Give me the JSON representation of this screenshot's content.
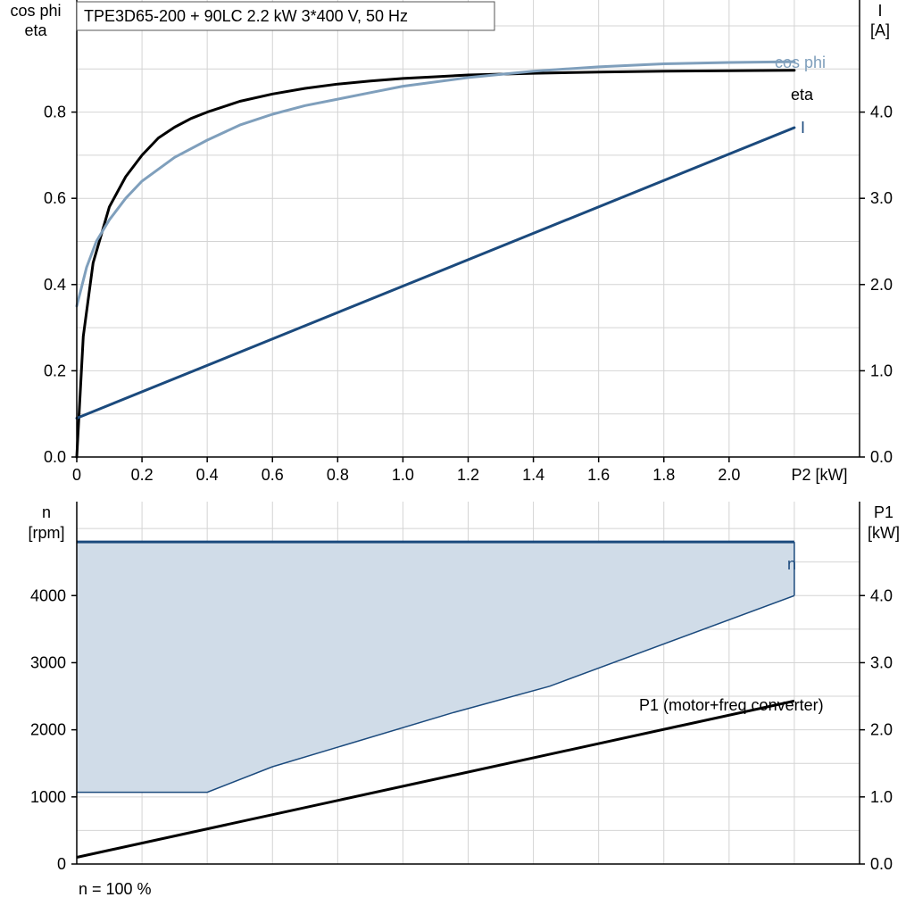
{
  "colors": {
    "eta": "#000000",
    "cos_phi": "#7f9fbc",
    "current": "#1b4a7d",
    "speed": "#1b4a7d",
    "speed_fill": "#d0dce8",
    "p1": "#000000",
    "grid": "#d4d4d4"
  },
  "footer": {
    "note": "n = 100 %"
  },
  "chart_data": [
    {
      "type": "line",
      "title": "TPE3D65-200 + 90LC   2.2 kW   3*400 V, 50 Hz",
      "xlabel": "P2 [kW]",
      "ylabel_lines": [
        "cos phi",
        "eta"
      ],
      "y2label_lines": [
        "I",
        "[A]"
      ],
      "xlim": [
        0,
        2.4
      ],
      "ylim": [
        0,
        1.06
      ],
      "y2lim": [
        0,
        5.3
      ],
      "x_ticks": [
        0,
        0.2,
        0.4,
        0.6,
        0.8,
        1.0,
        1.2,
        1.4,
        1.6,
        1.8,
        2.0
      ],
      "x_tick_labels": [
        "0",
        "0.2",
        "0.4",
        "0.6",
        "0.8",
        "1.0",
        "1.2",
        "1.4",
        "1.6",
        "1.8",
        "2.0"
      ],
      "y_ticks": [
        0,
        0.2,
        0.4,
        0.6,
        0.8
      ],
      "y_tick_labels": [
        "0.0",
        "0.2",
        "0.4",
        "0.6",
        "0.8"
      ],
      "y2_ticks": [
        0,
        1,
        2,
        3,
        4
      ],
      "y2_tick_labels": [
        "0.0",
        "1.0",
        "2.0",
        "3.0",
        "4.0"
      ],
      "grid": true,
      "series": [
        {
          "name": "eta",
          "axis": "left",
          "color_key": "eta",
          "x": [
            0,
            0.02,
            0.05,
            0.1,
            0.15,
            0.2,
            0.25,
            0.3,
            0.35,
            0.4,
            0.5,
            0.6,
            0.7,
            0.8,
            0.9,
            1.0,
            1.1,
            1.2,
            1.4,
            1.6,
            1.8,
            2.0,
            2.2
          ],
          "y": [
            0.0,
            0.28,
            0.45,
            0.58,
            0.65,
            0.7,
            0.74,
            0.765,
            0.785,
            0.8,
            0.825,
            0.842,
            0.855,
            0.865,
            0.872,
            0.878,
            0.882,
            0.886,
            0.89,
            0.893,
            0.895,
            0.896,
            0.897
          ]
        },
        {
          "name": "cos phi",
          "axis": "left",
          "color_key": "cos_phi",
          "x": [
            0,
            0.03,
            0.06,
            0.1,
            0.15,
            0.2,
            0.3,
            0.4,
            0.5,
            0.6,
            0.7,
            0.8,
            0.9,
            1.0,
            1.2,
            1.4,
            1.6,
            1.8,
            2.0,
            2.2
          ],
          "y": [
            0.35,
            0.44,
            0.5,
            0.55,
            0.6,
            0.64,
            0.695,
            0.735,
            0.77,
            0.795,
            0.815,
            0.83,
            0.845,
            0.86,
            0.88,
            0.895,
            0.905,
            0.912,
            0.915,
            0.917
          ]
        },
        {
          "name": "I",
          "axis": "right",
          "color_key": "current",
          "x": [
            0,
            2.2
          ],
          "y": [
            0.45,
            3.82
          ]
        }
      ]
    },
    {
      "type": "area",
      "ylabel_lines": [
        "n",
        "[rpm]"
      ],
      "y2label_lines": [
        "P1",
        "[kW]"
      ],
      "xlim": [
        0,
        2.4
      ],
      "ylim": [
        0,
        5400
      ],
      "y2lim": [
        0,
        5.4
      ],
      "y_ticks": [
        0,
        1000,
        2000,
        3000,
        4000
      ],
      "y_tick_labels": [
        "0",
        "1000",
        "2000",
        "3000",
        "4000"
      ],
      "y2_ticks": [
        0,
        1,
        2,
        3,
        4
      ],
      "y2_tick_labels": [
        "0.0",
        "1.0",
        "2.0",
        "3.0",
        "4.0"
      ],
      "grid": true,
      "speed_band": {
        "name": "n",
        "color_key": "speed",
        "fill_key": "speed_fill",
        "x": [
          0,
          0.4,
          0.6,
          1.15,
          1.45,
          2.2
        ],
        "upper": [
          4800,
          4800,
          4800,
          4800,
          4800,
          4800
        ],
        "lower": [
          1070,
          1070,
          1450,
          2250,
          2650,
          4000
        ]
      },
      "series": [
        {
          "name": "P1 (motor+freq converter)",
          "axis": "right",
          "color_key": "p1",
          "x": [
            0,
            2.2
          ],
          "y": [
            0.1,
            2.43
          ]
        }
      ]
    }
  ]
}
